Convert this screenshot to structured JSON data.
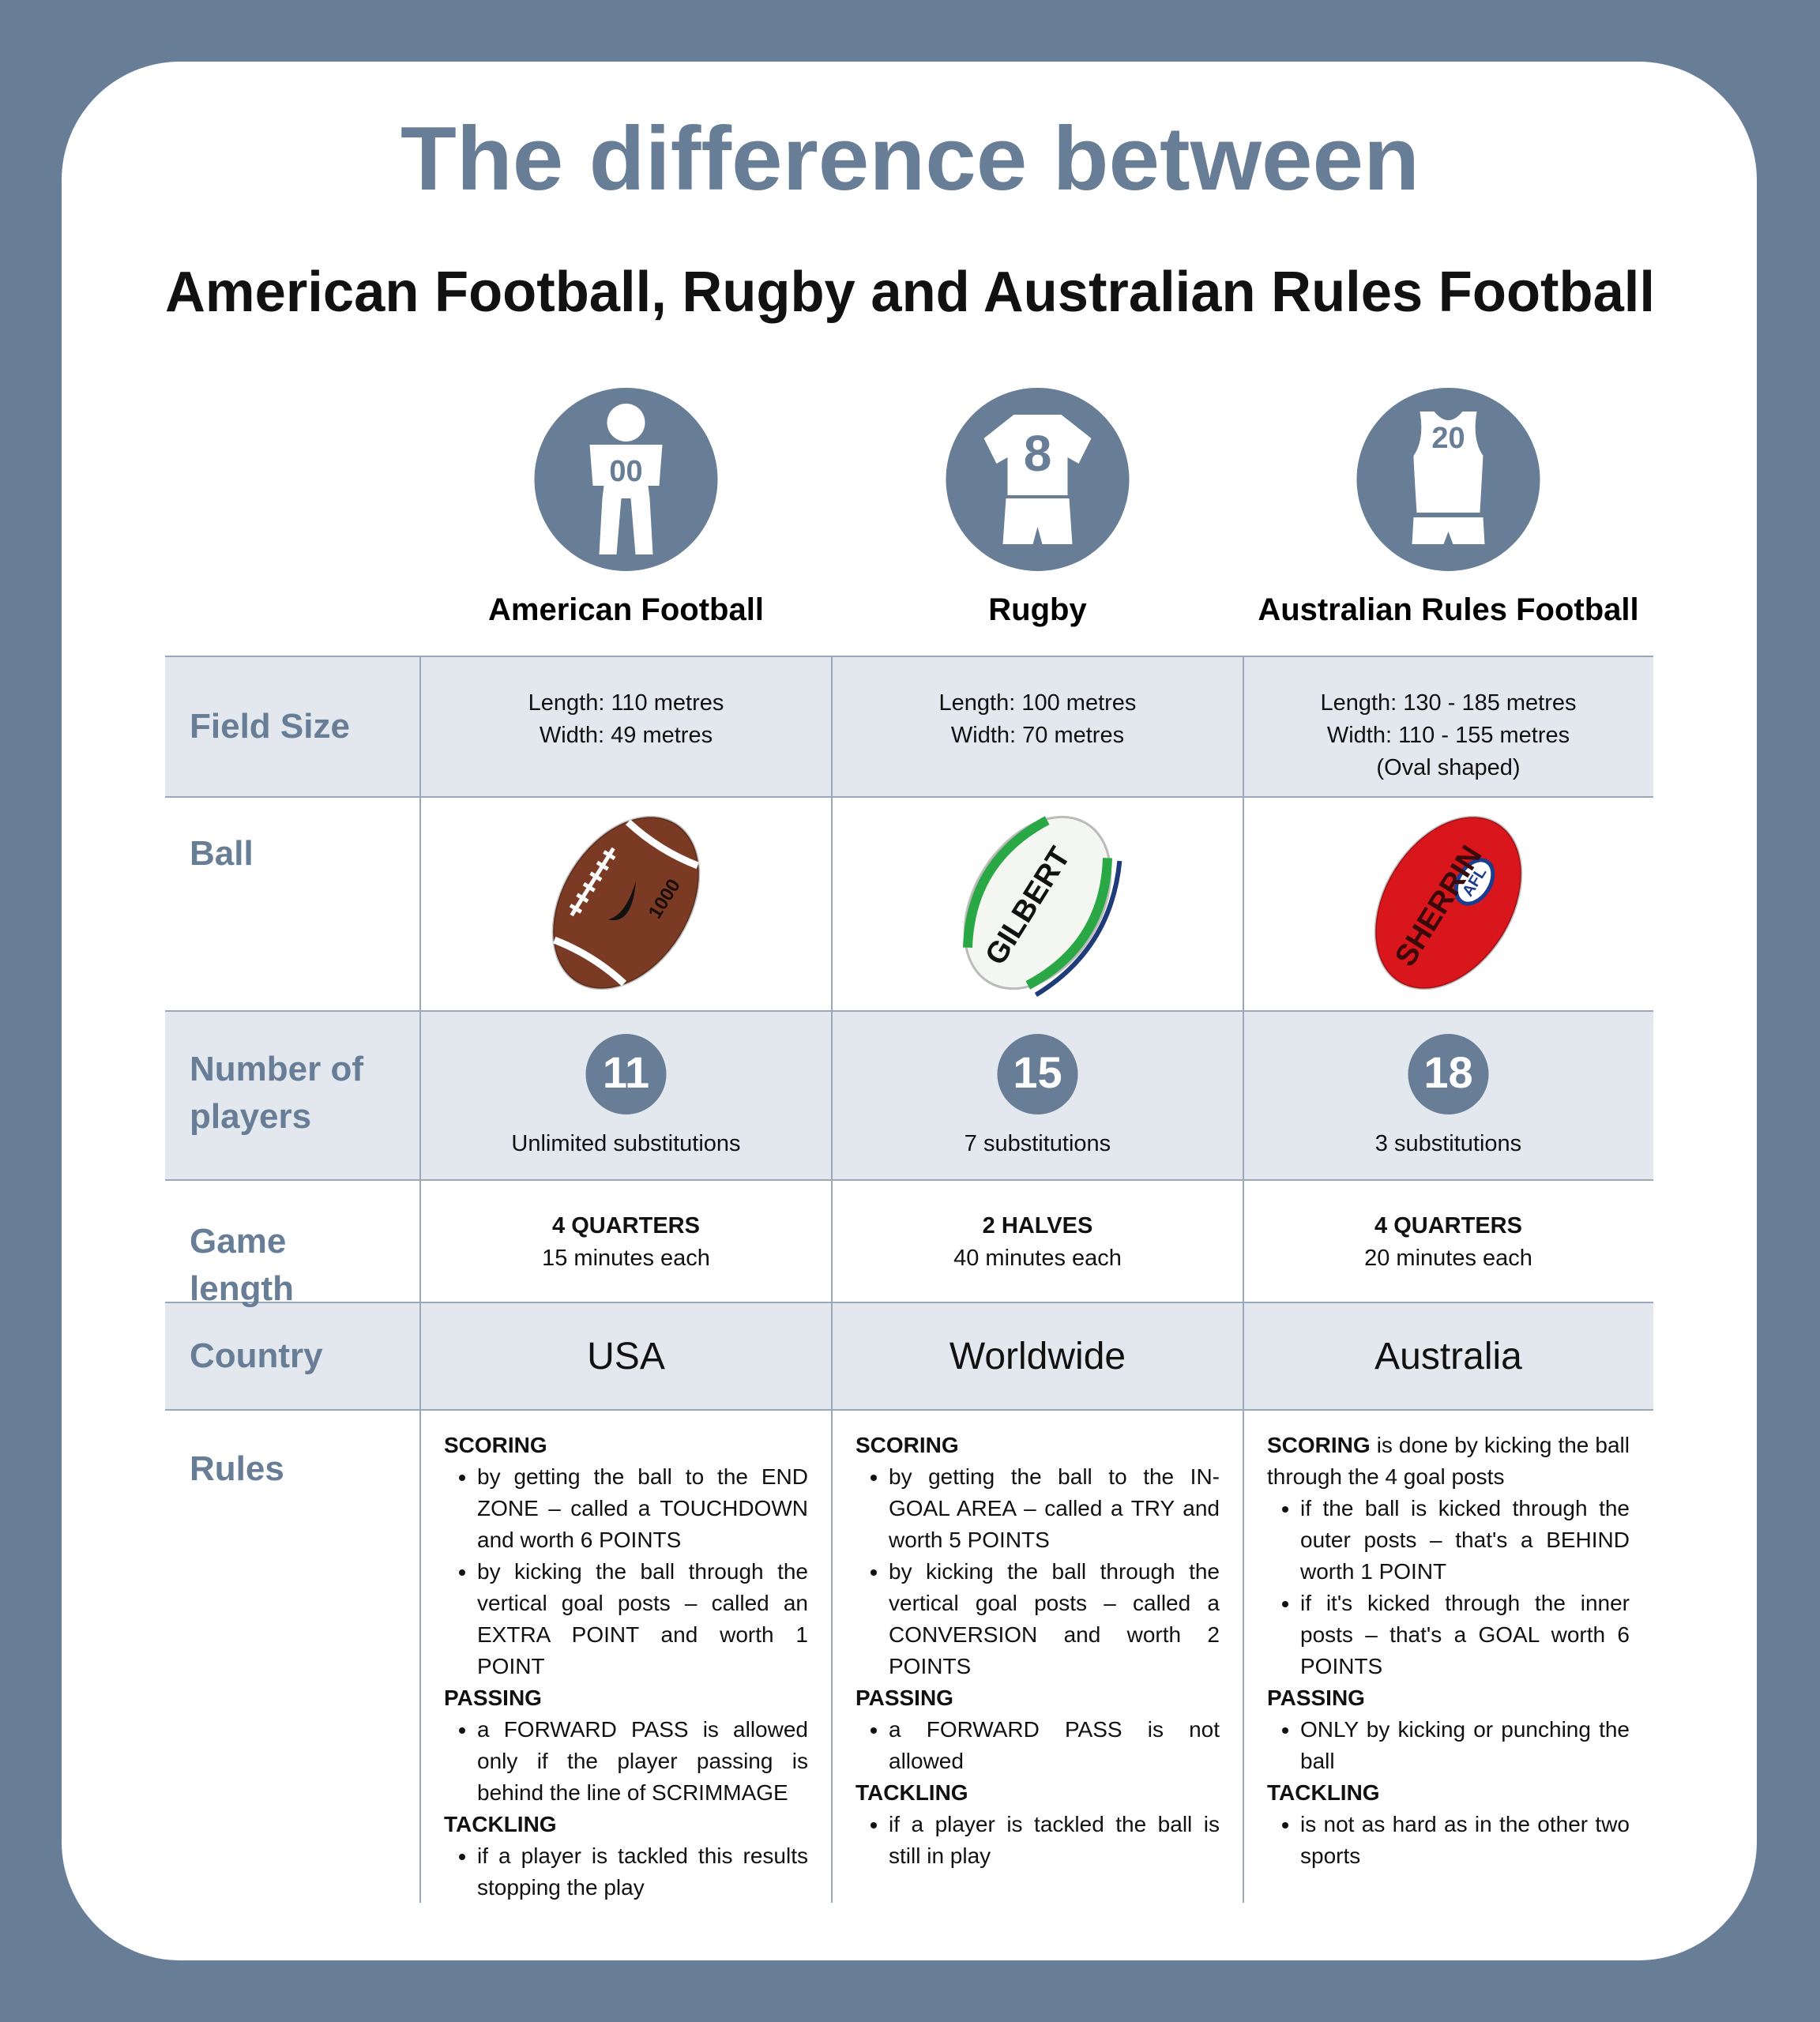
{
  "header": {
    "title": "The difference between",
    "subtitle": "American Football, Rugby and Australian Rules Football"
  },
  "columns": [
    {
      "name": "American Football",
      "icon_number": "00"
    },
    {
      "name": "Rugby",
      "icon_number": "8"
    },
    {
      "name": "Australian Rules Football",
      "icon_number": "20"
    }
  ],
  "rows": [
    {
      "label": "Field Size",
      "cells": [
        [
          "Length: 110 metres",
          "Width: 49 metres"
        ],
        [
          "Length: 100 metres",
          "Width: 70 metres"
        ],
        [
          "Length: 130 - 185 metres",
          "Width: 110 - 155 metres",
          "(Oval shaped)"
        ]
      ]
    },
    {
      "label": "Ball",
      "cells": [
        {
          "marking": "1000"
        },
        {
          "marking": "GILBERT"
        },
        {
          "marking": "SHERRIN",
          "badge": "AFL"
        }
      ]
    },
    {
      "label": "Number of players",
      "cells": [
        {
          "count": "11",
          "note": "Unlimited substitutions"
        },
        {
          "count": "15",
          "note": "7 substitutions"
        },
        {
          "count": "18",
          "note": "3 substitutions"
        }
      ]
    },
    {
      "label": "Game length",
      "cells": [
        {
          "period": "4 QUARTERS",
          "duration": "15 minutes each"
        },
        {
          "period": "2 HALVES",
          "duration": "40 minutes each"
        },
        {
          "period": "4 QUARTERS",
          "duration": "20 minutes each"
        }
      ]
    },
    {
      "label": "Country",
      "cells": [
        "USA",
        "Worldwide",
        "Australia"
      ]
    },
    {
      "label": "Rules",
      "cells": [
        [
          {
            "heading": "SCORING",
            "bullets": [
              "by getting the ball to the END ZONE – called a TOUCHDOWN and worth 6 POINTS",
              "by kicking the ball through the vertical goal posts – called an EXTRA POINT and worth 1 POINT"
            ]
          },
          {
            "heading": "PASSING",
            "bullets": [
              "a FORWARD PASS is allowed only if the player passing is behind the line of SCRIMMAGE"
            ]
          },
          {
            "heading": "TACKLING",
            "bullets": [
              "if a player is tackled this results stopping the play"
            ]
          }
        ],
        [
          {
            "heading": "SCORING",
            "bullets": [
              "by getting the ball to the IN-GOAL AREA – called a TRY and worth 5 POINTS",
              "by kicking the ball through the vertical goal posts – called a CONVERSION and worth 2 POINTS"
            ]
          },
          {
            "heading": "PASSING",
            "bullets": [
              "a FORWARD PASS is not allowed"
            ]
          },
          {
            "heading": "TACKLING",
            "bullets": [
              "if a player is tackled the ball is still in play"
            ]
          }
        ],
        [
          {
            "heading": "SCORING",
            "intro": "is done by kicking the ball through the 4 goal posts",
            "bullets": [
              "if the ball is kicked through the outer posts – that's a BEHIND worth 1 POINT",
              "if it's kicked through the inner posts – that's a GOAL worth 6 POINTS"
            ]
          },
          {
            "heading": "PASSING",
            "bullets": [
              "ONLY by kicking or punching the ball"
            ]
          },
          {
            "heading": "TACKLING",
            "bullets": [
              "is not as hard as in the other two sports"
            ]
          }
        ]
      ]
    }
  ]
}
